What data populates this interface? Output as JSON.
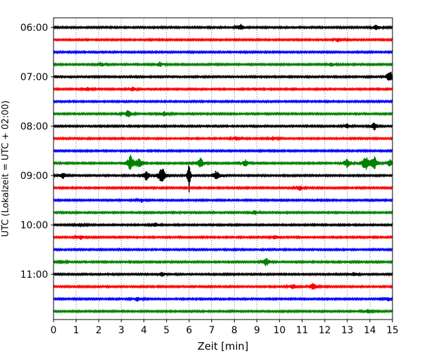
{
  "chart_data": {
    "type": "line",
    "title": "",
    "xlabel": "Zeit  [min]",
    "ylabel": "UTC (Lokalzeit = UTC + 02:00)",
    "xlim": [
      0,
      15
    ],
    "x_ticks": [
      "0",
      "1",
      "2",
      "3",
      "4",
      "5",
      "6",
      "7",
      "8",
      "9",
      "10",
      "11",
      "12",
      "13",
      "14",
      "15"
    ],
    "y_ticks": [
      "06:00",
      "07:00",
      "08:00",
      "09:00",
      "10:00",
      "11:00"
    ],
    "grid": "vertical dotted lines at each minute",
    "trace_interval_minutes": 15,
    "trace_colors": [
      "#000000",
      "#ff0000",
      "#0000ff",
      "#008000"
    ],
    "traces": [
      {
        "start": "06:00",
        "color": "#000000",
        "events": [
          {
            "t": 8.3,
            "amp": 0.5
          },
          {
            "t": 14.3,
            "amp": 0.4
          }
        ]
      },
      {
        "start": "06:15",
        "color": "#ff0000",
        "events": [
          {
            "t": 12.6,
            "amp": 0.3
          }
        ]
      },
      {
        "start": "06:30",
        "color": "#0000ff",
        "events": []
      },
      {
        "start": "06:45",
        "color": "#008000",
        "events": [
          {
            "t": 2.1,
            "amp": 0.3
          },
          {
            "t": 4.7,
            "amp": 0.35
          },
          {
            "t": 12.3,
            "amp": 0.3
          }
        ]
      },
      {
        "start": "07:00",
        "color": "#000000",
        "events": [
          {
            "t": 14.9,
            "amp": 1.0
          }
        ]
      },
      {
        "start": "07:15",
        "color": "#ff0000",
        "events": [
          {
            "t": 1.5,
            "amp": 0.3
          },
          {
            "t": 3.5,
            "amp": 0.3
          }
        ]
      },
      {
        "start": "07:30",
        "color": "#0000ff",
        "events": []
      },
      {
        "start": "07:45",
        "color": "#008000",
        "events": [
          {
            "t": 3.3,
            "amp": 0.6
          },
          {
            "t": 4.9,
            "amp": 0.35
          }
        ]
      },
      {
        "start": "08:00",
        "color": "#000000",
        "events": [
          {
            "t": 13.0,
            "amp": 0.3
          },
          {
            "t": 14.2,
            "amp": 0.6
          }
        ]
      },
      {
        "start": "08:15",
        "color": "#ff0000",
        "events": [
          {
            "t": 8.1,
            "amp": 0.3
          },
          {
            "t": 9.7,
            "amp": 0.3
          }
        ]
      },
      {
        "start": "08:30",
        "color": "#0000ff",
        "events": []
      },
      {
        "start": "08:45",
        "color": "#008000",
        "events": [
          {
            "t": 3.4,
            "amp": 1.3
          },
          {
            "t": 3.8,
            "amp": 0.8
          },
          {
            "t": 6.5,
            "amp": 0.8
          },
          {
            "t": 8.5,
            "amp": 0.5
          },
          {
            "t": 13.0,
            "amp": 0.8
          },
          {
            "t": 13.8,
            "amp": 1.2
          },
          {
            "t": 14.2,
            "amp": 1.0
          },
          {
            "t": 14.9,
            "amp": 0.6
          }
        ]
      },
      {
        "start": "09:00",
        "color": "#000000",
        "events": [
          {
            "t": 0.4,
            "amp": 0.5
          },
          {
            "t": 4.1,
            "amp": 0.7
          },
          {
            "t": 4.8,
            "amp": 1.5
          },
          {
            "t": 6.0,
            "amp": 3.5
          },
          {
            "t": 7.2,
            "amp": 0.8
          }
        ]
      },
      {
        "start": "09:15",
        "color": "#ff0000",
        "events": [
          {
            "t": 10.9,
            "amp": 0.4
          }
        ]
      },
      {
        "start": "09:30",
        "color": "#0000ff",
        "events": [
          {
            "t": 3.9,
            "amp": 0.3
          }
        ]
      },
      {
        "start": "09:45",
        "color": "#008000",
        "events": [
          {
            "t": 8.9,
            "amp": 0.3
          }
        ]
      },
      {
        "start": "10:00",
        "color": "#000000",
        "events": [
          {
            "t": 1.2,
            "amp": 0.3
          },
          {
            "t": 4.5,
            "amp": 0.3
          }
        ]
      },
      {
        "start": "10:15",
        "color": "#ff0000",
        "events": [
          {
            "t": 1.2,
            "amp": 0.3
          },
          {
            "t": 9.8,
            "amp": 0.3
          }
        ]
      },
      {
        "start": "10:30",
        "color": "#0000ff",
        "events": []
      },
      {
        "start": "10:45",
        "color": "#008000",
        "events": [
          {
            "t": 0.3,
            "amp": 0.3
          },
          {
            "t": 9.4,
            "amp": 0.7
          }
        ]
      },
      {
        "start": "11:00",
        "color": "#000000",
        "events": [
          {
            "t": 4.8,
            "amp": 0.3
          },
          {
            "t": 13.3,
            "amp": 0.3
          }
        ]
      },
      {
        "start": "11:15",
        "color": "#ff0000",
        "events": [
          {
            "t": 10.6,
            "amp": 0.35
          },
          {
            "t": 11.5,
            "amp": 0.6
          }
        ]
      },
      {
        "start": "11:30",
        "color": "#0000ff",
        "events": [
          {
            "t": 3.7,
            "amp": 0.3
          },
          {
            "t": 14.8,
            "amp": 0.3
          }
        ]
      },
      {
        "start": "11:45",
        "color": "#008000",
        "events": [
          {
            "t": 13.9,
            "amp": 0.3
          }
        ]
      }
    ]
  }
}
